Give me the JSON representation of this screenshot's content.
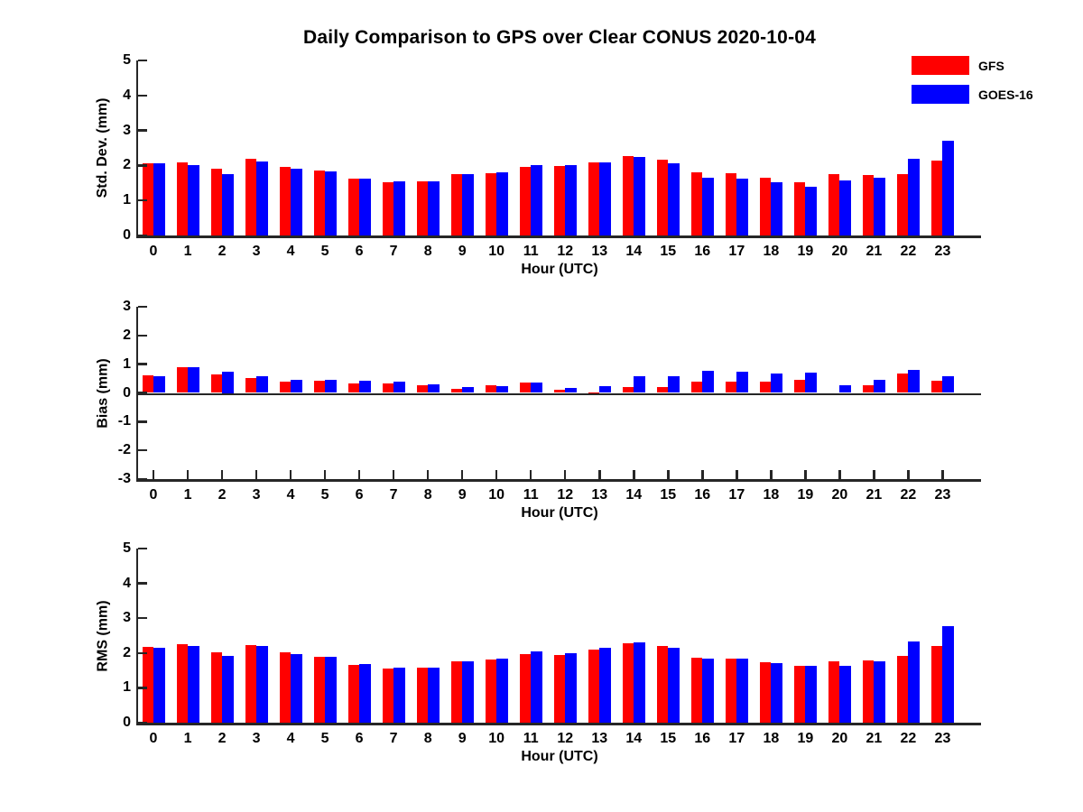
{
  "title": "Daily Comparison to GPS over Clear CONUS 2020-10-04",
  "legend": {
    "items": [
      {
        "label": "GFS",
        "color": "#FF0000"
      },
      {
        "label": "GOES-16",
        "color": "#0000FF"
      }
    ]
  },
  "colors": {
    "axis": "#262626",
    "text": "#000000",
    "background": "#FFFFFF"
  },
  "chart_data": [
    {
      "type": "bar",
      "panel": "std-dev",
      "ylabel": "Std. Dev. (mm)",
      "xlabel": "Hour (UTC)",
      "ylim": [
        0,
        5
      ],
      "yticks": [
        0,
        1,
        2,
        3,
        4,
        5
      ],
      "grid": false,
      "legend_position": "top-right-outside",
      "categories": [
        "0",
        "1",
        "2",
        "3",
        "4",
        "5",
        "6",
        "7",
        "8",
        "9",
        "10",
        "11",
        "12",
        "13",
        "14",
        "15",
        "16",
        "17",
        "18",
        "19",
        "20",
        "21",
        "22",
        "23"
      ],
      "series": [
        {
          "name": "GFS",
          "color": "#FF0000",
          "values": [
            2.06,
            2.1,
            1.9,
            2.2,
            1.97,
            1.85,
            1.62,
            1.52,
            1.54,
            1.75,
            1.78,
            1.95,
            1.98,
            2.1,
            2.26,
            2.17,
            1.8,
            1.77,
            1.64,
            1.51,
            1.74,
            1.73,
            1.76,
            2.13
          ]
        },
        {
          "name": "GOES-16",
          "color": "#0000FF",
          "values": [
            2.05,
            2.0,
            1.74,
            2.12,
            1.9,
            1.82,
            1.62,
            1.55,
            1.54,
            1.75,
            1.8,
            2.02,
            2.02,
            2.1,
            2.24,
            2.05,
            1.64,
            1.63,
            1.52,
            1.39,
            1.56,
            1.66,
            2.19,
            2.71
          ]
        }
      ]
    },
    {
      "type": "bar",
      "panel": "bias",
      "ylabel": "Bias (mm)",
      "xlabel": "Hour (UTC)",
      "ylim": [
        -3,
        3
      ],
      "yticks": [
        3,
        2,
        1,
        0,
        -1,
        -2,
        -3
      ],
      "grid": false,
      "legend_position": "none",
      "categories": [
        "0",
        "1",
        "2",
        "3",
        "4",
        "5",
        "6",
        "7",
        "8",
        "9",
        "10",
        "11",
        "12",
        "13",
        "14",
        "15",
        "16",
        "17",
        "18",
        "19",
        "20",
        "21",
        "22",
        "23"
      ],
      "series": [
        {
          "name": "GFS",
          "color": "#FF0000",
          "values": [
            0.6,
            0.88,
            0.65,
            0.52,
            0.4,
            0.42,
            0.33,
            0.33,
            0.26,
            0.13,
            0.27,
            0.35,
            0.1,
            0.03,
            0.19,
            0.21,
            0.38,
            0.38,
            0.38,
            0.44,
            0.0,
            0.28,
            0.66,
            0.41
          ]
        },
        {
          "name": "GOES-16",
          "color": "#0000FF",
          "values": [
            0.58,
            0.88,
            0.75,
            0.57,
            0.47,
            0.47,
            0.42,
            0.4,
            0.31,
            0.2,
            0.25,
            0.37,
            0.16,
            0.23,
            0.58,
            0.58,
            0.78,
            0.74,
            0.68,
            0.72,
            0.26,
            0.46,
            0.8,
            0.57
          ]
        }
      ]
    },
    {
      "type": "bar",
      "panel": "rms",
      "ylabel": "RMS (mm)",
      "xlabel": "Hour (UTC)",
      "ylim": [
        0,
        5
      ],
      "yticks": [
        0,
        1,
        2,
        3,
        4,
        5
      ],
      "grid": false,
      "legend_position": "none",
      "categories": [
        "0",
        "1",
        "2",
        "3",
        "4",
        "5",
        "6",
        "7",
        "8",
        "9",
        "10",
        "11",
        "12",
        "13",
        "14",
        "15",
        "16",
        "17",
        "18",
        "19",
        "20",
        "21",
        "22",
        "23"
      ],
      "series": [
        {
          "name": "GFS",
          "color": "#FF0000",
          "values": [
            2.17,
            2.25,
            2.02,
            2.24,
            2.02,
            1.89,
            1.66,
            1.55,
            1.57,
            1.76,
            1.81,
            1.97,
            1.95,
            2.1,
            2.27,
            2.2,
            1.87,
            1.84,
            1.73,
            1.62,
            1.76,
            1.79,
            1.92,
            2.21
          ]
        },
        {
          "name": "GOES-16",
          "color": "#0000FF",
          "values": [
            2.14,
            2.2,
            1.92,
            2.21,
            1.97,
            1.9,
            1.68,
            1.58,
            1.57,
            1.76,
            1.85,
            2.04,
            1.99,
            2.14,
            2.3,
            2.14,
            1.84,
            1.85,
            1.7,
            1.62,
            1.62,
            1.76,
            2.34,
            2.76
          ]
        }
      ]
    }
  ]
}
